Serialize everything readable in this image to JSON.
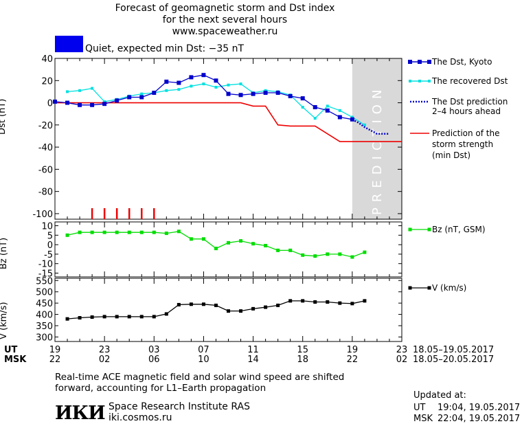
{
  "header": {
    "title_line1": "Forecast of geomagnetic storm and Dst index",
    "title_line2": "for the next several hours",
    "url": "www.spaceweather.ru",
    "status_color": "#0000ee",
    "status_text": "Quiet, expected min Dst: −35 nT"
  },
  "legend": {
    "dst_kyoto": "The Dst, Kyoto",
    "dst_recovered": "The recovered Dst",
    "dst_prediction_line1": "The Dst prediction",
    "dst_prediction_line2": "2–4 hours ahead",
    "storm_line1": "Prediction of the",
    "storm_line2": "storm strength",
    "storm_line3": "(min Dst)",
    "bz": "Bz (nT, GSM)",
    "v": "V (km/s)"
  },
  "time_axis": {
    "ut_label": "UT",
    "msk_label": "MSK",
    "ut_ticks": [
      "19",
      "23",
      "03",
      "07",
      "11",
      "15",
      "19",
      "23"
    ],
    "msk_ticks": [
      "22",
      "02",
      "06",
      "10",
      "14",
      "18",
      "22",
      "02"
    ],
    "ut_range": "18.05–19.05.2017",
    "msk_range": "18.05–20.05.2017"
  },
  "footer": {
    "note_line1": "Real-time ACE magnetic field and solar wind speed are shifted",
    "note_line2": "forward, accounting for L1–Earth propagation",
    "logo_text": "ИКИ",
    "institute": "Space Research Institute RAS",
    "institute_url": "iki.cosmos.ru",
    "updated_label": "Updated at:",
    "updated_ut_label": "UT",
    "updated_ut": "19:04, 19.05.2017",
    "updated_msk_label": "MSK",
    "updated_msk": "22:04, 19.05.2017"
  },
  "chart_data": [
    {
      "type": "line",
      "ylabel": "Dst (nT)",
      "ylim": [
        -105,
        40
      ],
      "xlim": [
        0,
        28
      ],
      "yticks": [
        40,
        20,
        0,
        -20,
        -40,
        -60,
        -80,
        -100
      ],
      "prediction_label": "PREDICTION",
      "prediction_region": [
        24,
        28
      ],
      "series": [
        {
          "name": "The Dst, Kyoto",
          "color": "#0000cc",
          "x": [
            0,
            1,
            2,
            3,
            4,
            5,
            6,
            7,
            8,
            9,
            10,
            11,
            12,
            13,
            14,
            15,
            16,
            17,
            18,
            19,
            20,
            21,
            22,
            23,
            24
          ],
          "y": [
            1,
            0,
            -2,
            -2,
            -1,
            2,
            5,
            5,
            9,
            19,
            18,
            23,
            25,
            20,
            8,
            7,
            8,
            9,
            9,
            6,
            4,
            -4,
            -7,
            -13,
            -15
          ]
        },
        {
          "name": "The recovered Dst",
          "color": "#00e0e0",
          "x": [
            1,
            2,
            3,
            4,
            5,
            6,
            7,
            8,
            9,
            10,
            11,
            12,
            13,
            14,
            15,
            16,
            17,
            18,
            19,
            20,
            21,
            22,
            23,
            24,
            25
          ],
          "y": [
            10,
            11,
            13,
            1,
            3,
            6,
            8,
            9,
            11,
            12,
            15,
            17,
            14,
            16,
            17,
            9,
            11,
            10,
            7,
            -4,
            -14,
            -3,
            -7,
            -13,
            -20
          ]
        },
        {
          "name": "The Dst prediction 2–4 hours ahead",
          "color": "#0000cc",
          "x": [
            24,
            24.5,
            25,
            26,
            27
          ],
          "y": [
            -15,
            -18,
            -22,
            -28,
            -28
          ]
        },
        {
          "name": "Prediction of the storm strength (min Dst)",
          "color": "#ee0000",
          "x": [
            0,
            15,
            16,
            17,
            18,
            19,
            20,
            21,
            23,
            24,
            28
          ],
          "y": [
            0,
            0,
            -3,
            -3,
            -20,
            -21,
            -21,
            -21,
            -35,
            -35,
            -35
          ]
        }
      ],
      "event_marks_x": [
        3,
        4,
        5,
        6,
        7,
        8
      ]
    },
    {
      "type": "line",
      "ylabel": "Bz (nT)",
      "ylim": [
        -17,
        12
      ],
      "xlim": [
        0,
        28
      ],
      "yticks": [
        10,
        5,
        0,
        -5,
        -10,
        -15
      ],
      "series": [
        {
          "name": "Bz (nT, GSM)",
          "color": "#00dd00",
          "x": [
            1,
            2,
            3,
            4,
            5,
            6,
            7,
            8,
            9,
            10,
            11,
            12,
            13,
            14,
            15,
            16,
            17,
            18,
            19,
            20,
            21,
            22,
            23,
            24,
            25
          ],
          "y": [
            5,
            6.5,
            6.5,
            6.5,
            6.5,
            6.5,
            6.5,
            6.5,
            6,
            7,
            3,
            3,
            -2,
            1,
            2,
            0.5,
            -0.5,
            -3,
            -3,
            -5.5,
            -6,
            -5,
            -5,
            -6.5,
            -4
          ]
        }
      ]
    },
    {
      "type": "line",
      "ylabel": "V (km/s)",
      "ylim": [
        280,
        560
      ],
      "xlim": [
        0,
        28
      ],
      "yticks": [
        550,
        500,
        450,
        400,
        350,
        300
      ],
      "series": [
        {
          "name": "V (km/s)",
          "color": "#000000",
          "x": [
            1,
            2,
            3,
            4,
            5,
            6,
            7,
            8,
            9,
            10,
            11,
            12,
            13,
            14,
            15,
            16,
            17,
            18,
            19,
            20,
            21,
            22,
            23,
            24,
            25
          ],
          "y": [
            380,
            385,
            388,
            390,
            390,
            390,
            390,
            390,
            402,
            443,
            445,
            445,
            440,
            415,
            415,
            425,
            432,
            440,
            460,
            460,
            455,
            455,
            450,
            448,
            460
          ]
        }
      ]
    }
  ]
}
